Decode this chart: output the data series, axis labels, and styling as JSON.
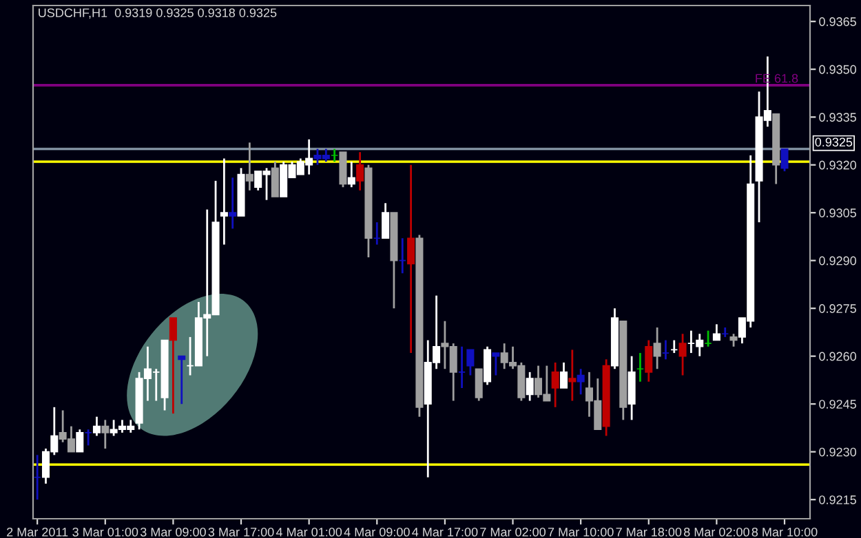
{
  "chart_data": {
    "type": "candlestick",
    "title": "USDCHF,H1  0.9319 0.9325 0.9318 0.9325",
    "categories": [
      "2 Mar 2011",
      null,
      null,
      null,
      null,
      null,
      null,
      null,
      "3 Mar 01:00",
      null,
      null,
      null,
      null,
      null,
      null,
      null,
      "3 Mar 09:00",
      null,
      null,
      null,
      null,
      null,
      null,
      null,
      "3 Mar 17:00",
      null,
      null,
      null,
      null,
      null,
      null,
      null,
      "4 Mar 01:00",
      null,
      null,
      null,
      null,
      null,
      null,
      null,
      "4 Mar 09:00",
      null,
      null,
      null,
      null,
      null,
      null,
      null,
      "4 Mar 17:00",
      null,
      null,
      null,
      null,
      null,
      null,
      null,
      "7 Mar 02:00",
      null,
      null,
      null,
      null,
      null,
      null,
      null,
      "7 Mar 10:00",
      null,
      null,
      null,
      null,
      null,
      null,
      null,
      "7 Mar 18:00",
      null,
      null,
      null,
      null,
      null,
      null,
      null,
      "8 Mar 02:00",
      null,
      null,
      null,
      null,
      null,
      null,
      null,
      "8 Mar 10:00"
    ],
    "ohlc": [
      [
        0.9222,
        0.9229,
        0.9215,
        0.9222
      ],
      [
        0.9222,
        0.9231,
        0.922,
        0.923
      ],
      [
        0.923,
        0.9244,
        0.9229,
        0.9235
      ],
      [
        0.9236,
        0.9243,
        0.9233,
        0.9234
      ],
      [
        0.9234,
        0.9238,
        0.923,
        0.923
      ],
      [
        0.923,
        0.9237,
        0.923,
        0.9236
      ],
      [
        0.9236,
        0.9237,
        0.9232,
        0.9236
      ],
      [
        0.9236,
        0.9241,
        0.9235,
        0.9238
      ],
      [
        0.9238,
        0.924,
        0.9231,
        0.9236
      ],
      [
        0.9236,
        0.924,
        0.9235,
        0.9237
      ],
      [
        0.9237,
        0.924,
        0.9236,
        0.9238
      ],
      [
        0.9237,
        0.924,
        0.9236,
        0.9238
      ],
      [
        0.9239,
        0.9255,
        0.9237,
        0.9253
      ],
      [
        0.9253,
        0.9263,
        0.9246,
        0.9256
      ],
      [
        0.9255,
        0.9256,
        0.9246,
        0.9255
      ],
      [
        0.9247,
        0.9265,
        0.9243,
        0.9265
      ],
      [
        0.9265,
        0.9272,
        0.9242,
        0.9272
      ],
      [
        0.926,
        0.926,
        0.9245,
        0.9259
      ],
      [
        0.9257,
        0.9266,
        0.9254,
        0.9257
      ],
      [
        0.9257,
        0.9277,
        0.9257,
        0.9272
      ],
      [
        0.9272,
        0.9306,
        0.926,
        0.9273
      ],
      [
        0.9273,
        0.9315,
        0.9273,
        0.9302
      ],
      [
        0.9304,
        0.9322,
        0.9295,
        0.9305
      ],
      [
        0.9305,
        0.9316,
        0.93,
        0.9304
      ],
      [
        0.9304,
        0.9319,
        0.9304,
        0.9317
      ],
      [
        0.9317,
        0.9327,
        0.9312,
        0.9315
      ],
      [
        0.9313,
        0.9318,
        0.9312,
        0.9318
      ],
      [
        0.9317,
        0.9319,
        0.9309,
        0.9318
      ],
      [
        0.9319,
        0.9321,
        0.931,
        0.931
      ],
      [
        0.931,
        0.9321,
        0.931,
        0.932
      ],
      [
        0.9316,
        0.9321,
        0.9316,
        0.932
      ],
      [
        0.9317,
        0.9322,
        0.9317,
        0.9321
      ],
      [
        0.932,
        0.9328,
        0.9317,
        0.9322
      ],
      [
        0.9322,
        0.9325,
        0.932,
        0.9323
      ],
      [
        0.9322,
        0.9325,
        0.9321,
        0.9323
      ],
      [
        0.9323,
        0.9325,
        0.9321,
        0.9323
      ],
      [
        0.9324,
        0.9324,
        0.9313,
        0.9314
      ],
      [
        0.9314,
        0.9321,
        0.9313,
        0.9316
      ],
      [
        0.9315,
        0.9324,
        0.9312,
        0.932
      ],
      [
        0.9319,
        0.932,
        0.9291,
        0.9297
      ],
      [
        0.9297,
        0.9302,
        0.9295,
        0.9297
      ],
      [
        0.9297,
        0.9308,
        0.9297,
        0.9305
      ],
      [
        0.9305,
        0.9305,
        0.9275,
        0.929
      ],
      [
        0.929,
        0.9297,
        0.9286,
        0.929
      ],
      [
        0.9289,
        0.932,
        0.9261,
        0.9297
      ],
      [
        0.9297,
        0.9298,
        0.9241,
        0.9244
      ],
      [
        0.9245,
        0.9265,
        0.9222,
        0.9258
      ],
      [
        0.9258,
        0.9279,
        0.9256,
        0.9263
      ],
      [
        0.9264,
        0.9271,
        0.9256,
        0.9263
      ],
      [
        0.9263,
        0.9264,
        0.9246,
        0.9255
      ],
      [
        0.9255,
        0.9263,
        0.925,
        0.9255
      ],
      [
        0.9262,
        0.9262,
        0.9254,
        0.9257
      ],
      [
        0.9256,
        0.9256,
        0.9246,
        0.9247
      ],
      [
        0.9252,
        0.9263,
        0.9251,
        0.9262
      ],
      [
        0.9261,
        0.9261,
        0.9254,
        0.926
      ],
      [
        0.9261,
        0.9264,
        0.9256,
        0.9258
      ],
      [
        0.9258,
        0.9263,
        0.9256,
        0.9257
      ],
      [
        0.9257,
        0.9258,
        0.9246,
        0.9247
      ],
      [
        0.9248,
        0.9255,
        0.9246,
        0.9253
      ],
      [
        0.9253,
        0.9257,
        0.9247,
        0.9248
      ],
      [
        0.9248,
        0.9257,
        0.9246,
        0.9246
      ],
      [
        0.9255,
        0.9258,
        0.9244,
        0.925
      ],
      [
        0.925,
        0.9258,
        0.925,
        0.9255
      ],
      [
        0.9253,
        0.9262,
        0.9246,
        0.9252
      ],
      [
        0.9254,
        0.9256,
        0.9248,
        0.9252
      ],
      [
        0.925,
        0.9255,
        0.9241,
        0.9246
      ],
      [
        0.9246,
        0.9253,
        0.9237,
        0.9237
      ],
      [
        0.9238,
        0.9259,
        0.9235,
        0.9257
      ],
      [
        0.9257,
        0.9275,
        0.9256,
        0.9272
      ],
      [
        0.9271,
        0.9271,
        0.924,
        0.9244
      ],
      [
        0.9245,
        0.926,
        0.924,
        0.9255
      ],
      [
        0.9256,
        0.9261,
        0.9252,
        0.9256
      ],
      [
        0.9255,
        0.9265,
        0.9252,
        0.9263
      ],
      [
        0.9264,
        0.9269,
        0.9256,
        0.926
      ],
      [
        0.9261,
        0.9265,
        0.9259,
        0.9261
      ],
      [
        0.9262,
        0.9265,
        0.9261,
        0.9262
      ],
      [
        0.926,
        0.9267,
        0.9254,
        0.9264
      ],
      [
        0.9264,
        0.9268,
        0.9261,
        0.9264
      ],
      [
        0.9263,
        0.9267,
        0.926,
        0.9265
      ],
      [
        0.9264,
        0.9268,
        0.9263,
        0.9264
      ],
      [
        0.9265,
        0.927,
        0.9265,
        0.9267
      ],
      [
        0.9267,
        0.9269,
        0.9266,
        0.9267
      ],
      [
        0.9266,
        0.9267,
        0.9263,
        0.9265
      ],
      [
        0.9266,
        0.9272,
        0.9264,
        0.9272
      ],
      [
        0.9271,
        0.9323,
        0.9269,
        0.9314
      ],
      [
        0.9315,
        0.9343,
        0.9302,
        0.9335
      ],
      [
        0.9334,
        0.9354,
        0.9332,
        0.9337
      ],
      [
        0.9336,
        0.9336,
        0.9314,
        0.932
      ],
      [
        0.9319,
        0.9325,
        0.9318,
        0.9325
      ]
    ],
    "colors": [
      "#1010c0",
      "#ffffff",
      "#ffffff",
      "#a0a0a0",
      "#a0a0a0",
      "#ffffff",
      "#1010c0",
      "#ffffff",
      "#a0a0a0",
      "#ffffff",
      "#ffffff",
      "#ffffff",
      "#ffffff",
      "#ffffff",
      "#ffffff",
      "#ffffff",
      "#c00000",
      "#1010c0",
      "#ffffff",
      "#ffffff",
      "#ffffff",
      "#ffffff",
      "#ffffff",
      "#1010c0",
      "#ffffff",
      "#a0a0a0",
      "#ffffff",
      "#ffffff",
      "#a0a0a0",
      "#ffffff",
      "#ffffff",
      "#ffffff",
      "#ffffff",
      "#1010c0",
      "#1010c0",
      "#00c000",
      "#a0a0a0",
      "#ffffff",
      "#c00000",
      "#a0a0a0",
      "#1010c0",
      "#ffffff",
      "#a0a0a0",
      "#1010c0",
      "#c00000",
      "#a0a0a0",
      "#ffffff",
      "#ffffff",
      "#a0a0a0",
      "#a0a0a0",
      "#1010c0",
      "#1010c0",
      "#a0a0a0",
      "#ffffff",
      "#1010c0",
      "#a0a0a0",
      "#a0a0a0",
      "#a0a0a0",
      "#ffffff",
      "#a0a0a0",
      "#a0a0a0",
      "#c00000",
      "#ffffff",
      "#c00000",
      "#1010c0",
      "#a0a0a0",
      "#a0a0a0",
      "#c00000",
      "#ffffff",
      "#a0a0a0",
      "#ffffff",
      "#00c000",
      "#c00000",
      "#a0a0a0",
      "#1010c0",
      "#ffffff",
      "#c00000",
      "#ffffff",
      "#ffffff",
      "#00c000",
      "#ffffff",
      "#1010c0",
      "#a0a0a0",
      "#ffffff",
      "#ffffff",
      "#ffffff",
      "#ffffff",
      "#a0a0a0",
      "#1010c0"
    ],
    "ylim": [
      0.9209,
      0.937
    ],
    "yticks": [
      0.9215,
      {
        "value": 0.923,
        "label": "0.9230"
      },
      0.9245,
      {
        "value": 0.926,
        "label": "0.9260"
      },
      0.9275,
      {
        "value": 0.929,
        "label": "0.9290"
      },
      0.9305,
      {
        "value": 0.932,
        "label": "0.9320"
      },
      0.9335,
      {
        "value": 0.935,
        "label": "0.9350"
      },
      0.9365
    ],
    "ref_lines": [
      {
        "axis": "y",
        "value": 0.9321,
        "color": "#ffff00"
      },
      {
        "axis": "y",
        "value": 0.9226,
        "color": "#ffff00"
      },
      {
        "axis": "y",
        "value": 0.9325,
        "label": "0.9325",
        "color": "#8090a0"
      },
      {
        "axis": "y",
        "value": 0.9345,
        "label": "FE 61.8",
        "color": "#800080"
      }
    ]
  }
}
